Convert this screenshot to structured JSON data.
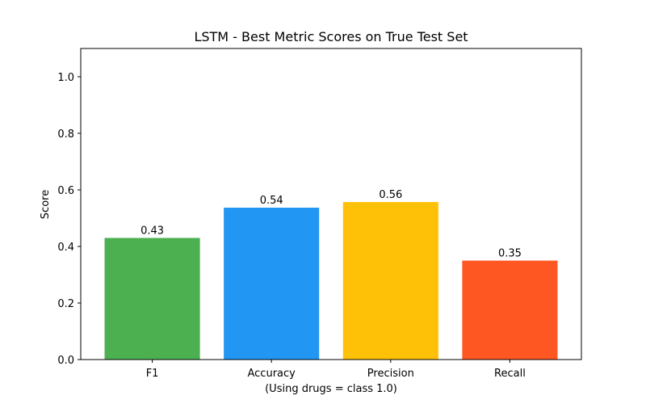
{
  "chart_data": {
    "type": "bar",
    "title": "LSTM - Best Metric Scores on True Test Set",
    "xlabel": "(Using drugs = class 1.0)",
    "ylabel": "Score",
    "categories": [
      "F1",
      "Accuracy",
      "Precision",
      "Recall"
    ],
    "values": [
      0.43,
      0.537,
      0.557,
      0.35
    ],
    "data_labels": [
      "0.43",
      "0.54",
      "0.56",
      "0.35"
    ],
    "colors": [
      "#4caf50",
      "#2196f3",
      "#ffc107",
      "#ff5722"
    ],
    "ylim": [
      0,
      1.1
    ],
    "yticks": [
      0.0,
      0.2,
      0.4,
      0.6,
      0.8,
      1.0
    ],
    "ytick_labels": [
      "0.0",
      "0.2",
      "0.4",
      "0.6",
      "0.8",
      "1.0"
    ],
    "grid": false,
    "legend": "none"
  }
}
